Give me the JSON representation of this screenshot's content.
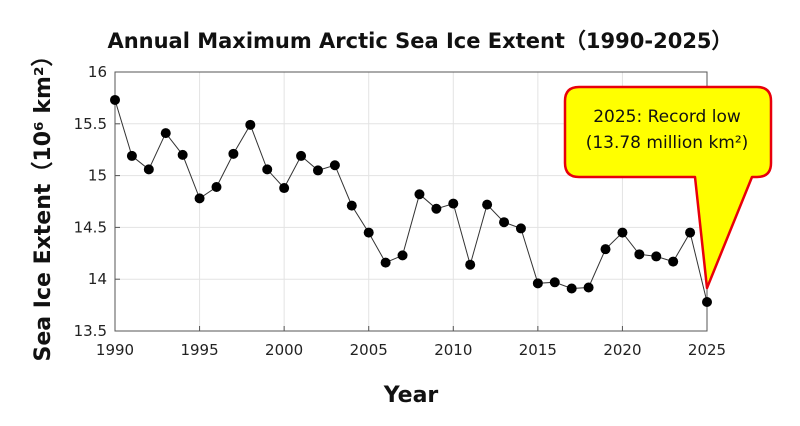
{
  "chart_data": {
    "type": "line",
    "title": "Annual Maximum Arctic Sea Ice Extent（1990-2025）",
    "xlabel": "Year",
    "ylabel": "Sea Ice Extent（10⁶ km²）",
    "xlim": [
      1990,
      2025
    ],
    "ylim": [
      13.5,
      16
    ],
    "xticks": [
      1990,
      1995,
      2000,
      2005,
      2010,
      2015,
      2020,
      2025
    ],
    "yticks": [
      13.5,
      14,
      14.5,
      15,
      15.5,
      16
    ],
    "ytick_labels": [
      "13.5",
      "14",
      "14.5",
      "15",
      "15.5",
      "16"
    ],
    "grid": true,
    "x": [
      1990,
      1991,
      1992,
      1993,
      1994,
      1995,
      1996,
      1997,
      1998,
      1999,
      2000,
      2001,
      2002,
      2003,
      2004,
      2005,
      2006,
      2007,
      2008,
      2009,
      2010,
      2011,
      2012,
      2013,
      2014,
      2015,
      2016,
      2017,
      2018,
      2019,
      2020,
      2021,
      2022,
      2023,
      2024,
      2025
    ],
    "y": [
      15.73,
      15.19,
      15.06,
      15.41,
      15.2,
      14.78,
      14.89,
      15.21,
      15.49,
      15.06,
      14.88,
      15.19,
      15.05,
      15.1,
      14.71,
      14.45,
      14.16,
      14.23,
      14.82,
      14.68,
      14.73,
      14.14,
      14.72,
      14.55,
      14.49,
      13.96,
      13.97,
      13.91,
      13.92,
      14.29,
      14.45,
      14.24,
      14.22,
      14.17,
      14.45,
      13.78
    ],
    "annotation": {
      "x": 2025,
      "y": 13.78,
      "line1": "2025: Record low",
      "line2": "(13.78 million km²)",
      "fill": "#ffff00",
      "border": "#e8000b"
    }
  }
}
